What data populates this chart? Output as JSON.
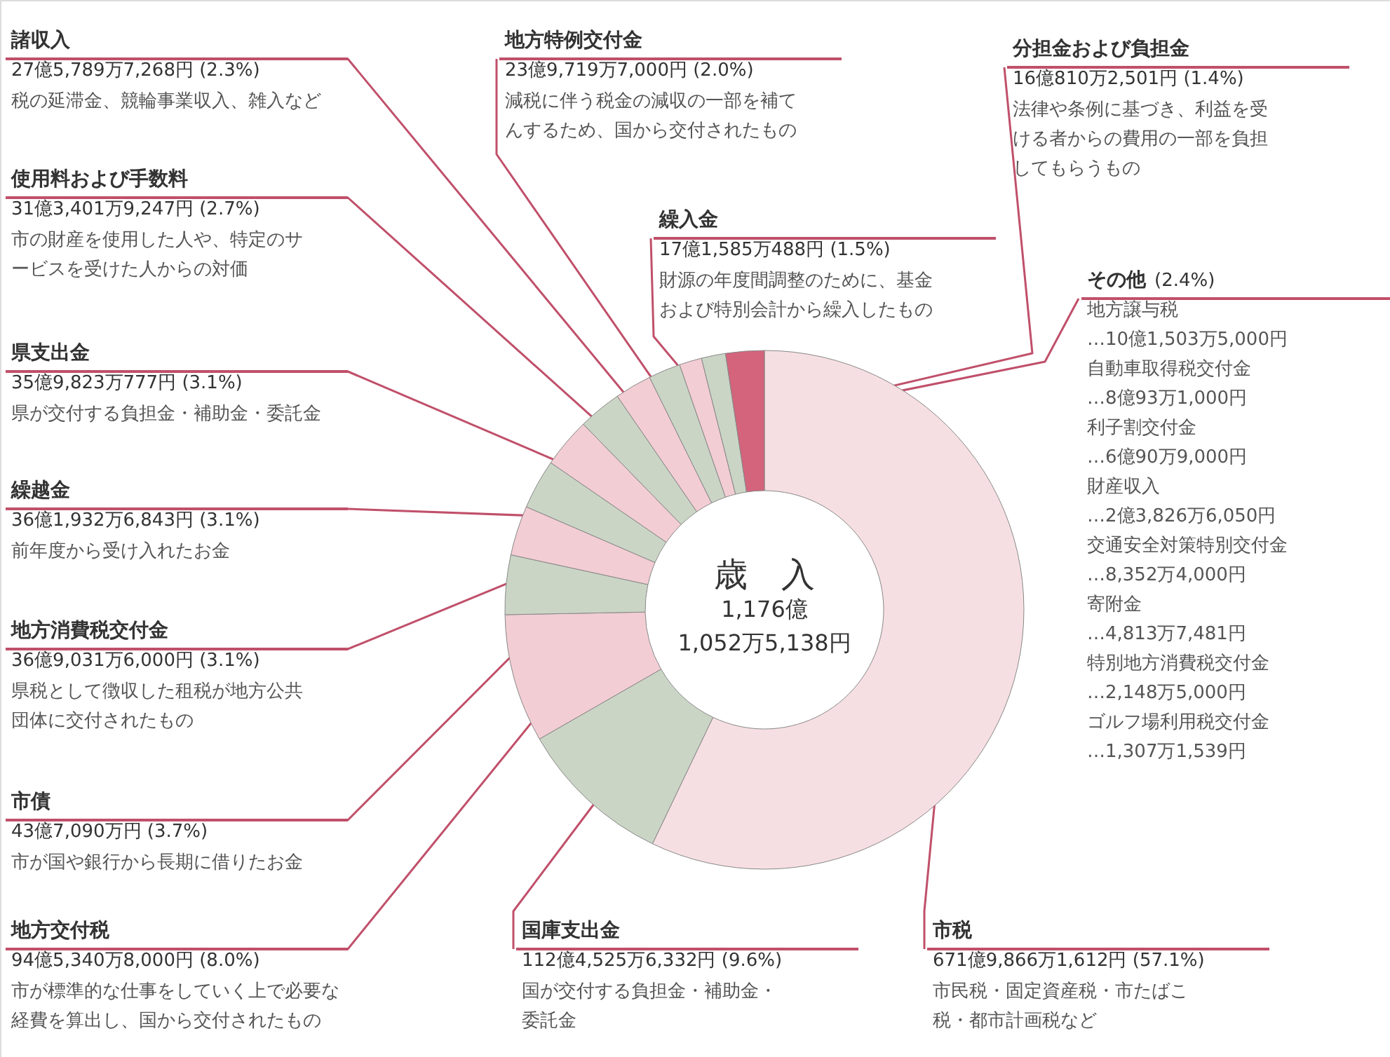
{
  "chart_data": {
    "type": "donut",
    "title": "歳　入",
    "subtitle": "1,176億\n1,052万5,138円",
    "categories": [
      "市税",
      "国庫支出金",
      "地方交付税",
      "市債",
      "地方消費税交付金",
      "繰越金",
      "県支出金",
      "使用料および手数料",
      "諸収入",
      "地方特例交付金",
      "分担金および負担金",
      "繰入金",
      "その他"
    ],
    "values": [
      57.1,
      9.6,
      8.0,
      3.7,
      3.1,
      3.1,
      3.1,
      2.7,
      2.3,
      2.0,
      1.4,
      1.5,
      2.4
    ],
    "colors": [
      "#f6dfe2",
      "#cbd5c6",
      "#f2cdd3",
      "#cbd5c6",
      "#f2cdd3",
      "#cbd5c6",
      "#f2cdd3",
      "#cbd5c6",
      "#f2cdd3",
      "#cbd5c6",
      "#f2cdd3",
      "#cbd5c6",
      "#d4637c"
    ],
    "value_labels": [
      "671億9,866万1,612円 (57.1%)",
      "112億4,525万6,332円 (9.6%)",
      "94億5,340万8,000円 (8.0%)",
      "43億7,090万円 (3.7%)",
      "36億9,031万6,000円 (3.1%)",
      "36億1,932万6,843円 (3.1%)",
      "35億9,823万777円 (3.1%)",
      "31億3,401万9,247円 (2.7%)",
      "27億5,789万7,268円 (2.3%)",
      "23億9,719万7,000円 (2.0%)",
      "16億810万2,501円 (1.4%)",
      "17億1,585万488円 (1.5%)",
      "(2.4%)"
    ],
    "annotations": [
      "市民税・固定資産税・市たばこ税・都市計画税など",
      "国が交付する負担金・補助金・委託金",
      "市が標準的な仕事をしていく上で必要な経費を算出し、国から交付されたもの",
      "市が国や銀行から長期に借りたお金",
      "県税として徴収した租税が地方公共団体に交付されたもの",
      "前年度から受け入れたお金",
      "県が交付する負担金・補助金・委託金",
      "市の財産を使用した人や、特定のサービスを受けた人からの対価",
      "税の延滞金、競輪事業収入、雑入など",
      "減税に伴う税金の減収の一部を補てんするため、国から交付されたもの",
      "法律や条例に基づき、利益を受ける者からの費用の一部を負担してもらうもの",
      "財源の年度間調整のために、基金および特別会計から繰入したもの",
      "地方譲与税",
      "…10億1,503万5,000円",
      "自動車取得税交付金",
      "…8億93万1,000円",
      "利子割交付金",
      "…6億90万9,000円",
      "財産収入",
      "…2億3,826万6,050円",
      "交通安全対策特別交付金",
      "…8,352万4,000円",
      "寄附金",
      "…4,813万7,481円",
      "特別地方消費税交付金",
      "…2,148万5,000円",
      "ゴルフ場利用税交付金",
      "…1,307万1,539円"
    ]
  }
}
